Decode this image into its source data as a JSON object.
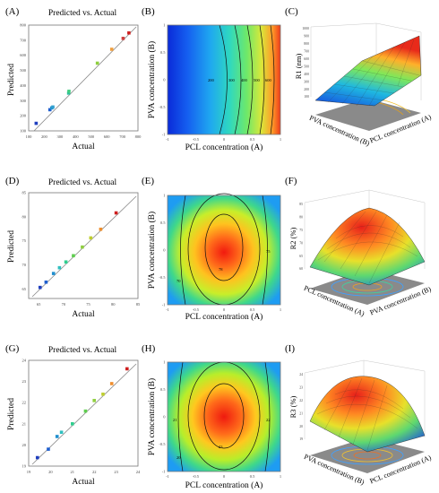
{
  "panels": [
    {
      "id": "A",
      "label": "(A)",
      "kind": "scatter",
      "title": "Predicted vs. Actual",
      "xlabel": "Actual",
      "ylabel": "Predicted",
      "ticks": [
        "100",
        "200",
        "300",
        "400",
        "500",
        "600",
        "700",
        "800"
      ],
      "range": [
        100,
        800
      ],
      "points": [
        [
          148,
          150
        ],
        [
          236,
          240
        ],
        [
          248,
          252
        ],
        [
          255,
          258
        ],
        [
          356,
          350
        ],
        [
          358,
          362
        ],
        [
          540,
          548
        ],
        [
          632,
          640
        ],
        [
          705,
          712
        ],
        [
          742,
          748
        ]
      ],
      "colors": [
        "#1f3fbf",
        "#1f5fcf",
        "#1f8fcf",
        "#2f9fcf",
        "#2fbf9f",
        "#3fcf7f",
        "#8fcf3f",
        "#ef9f3f",
        "#cf3f3f",
        "#cf1f1f"
      ]
    },
    {
      "id": "B",
      "label": "(B)",
      "kind": "contour",
      "xlabel": "PCL concentration (A)",
      "ylabel": "PVA concentration (B)",
      "xticks": [
        "-1",
        "-0.5",
        "0",
        "0.5",
        "1"
      ],
      "yticks": [
        "-1",
        "-0.5",
        "0",
        "0.5",
        "1"
      ],
      "contour_labels": [
        "200",
        "300",
        "400",
        "500",
        "600"
      ]
    },
    {
      "id": "C",
      "label": "(C)",
      "kind": "surface",
      "zlabel": "R1 (nm)",
      "xlabel": "PCL concentration (A)",
      "ylabel": "PVA concentration (B)",
      "zticks": [
        "100",
        "200",
        "300",
        "400",
        "500",
        "600",
        "700",
        "800",
        "900",
        "1000"
      ]
    },
    {
      "id": "D",
      "label": "(D)",
      "kind": "scatter",
      "title": "Predicted vs. Actual",
      "xlabel": "Actual",
      "ylabel": "Predicted",
      "ticks": [
        "65",
        "70",
        "75",
        "80",
        "85"
      ],
      "range": [
        63,
        85
      ],
      "points": [
        [
          65.3,
          65.3
        ],
        [
          66.5,
          66.4
        ],
        [
          68.0,
          68.2
        ],
        [
          69.2,
          69.4
        ],
        [
          70.5,
          70.6
        ],
        [
          72.0,
          71.9
        ],
        [
          73.8,
          73.7
        ],
        [
          75.5,
          75.6
        ],
        [
          77.5,
          77.4
        ],
        [
          80.6,
          80.8
        ]
      ],
      "colors": [
        "#1f3fbf",
        "#1f5fcf",
        "#1f8fcf",
        "#2fbfbf",
        "#2fcf8f",
        "#5fcf4f",
        "#8fcf3f",
        "#bfcf2f",
        "#ef8f2f",
        "#cf1f1f"
      ]
    },
    {
      "id": "E",
      "label": "(E)",
      "kind": "contour",
      "xlabel": "PCL concentration (A)",
      "ylabel": "PVA concentration (B)",
      "xticks": [
        "-1",
        "-0.5",
        "0",
        "0.5",
        "1"
      ],
      "yticks": [
        "-1",
        "-0.5",
        "0",
        "0.5",
        "1"
      ],
      "contour_labels": [
        "70",
        "75",
        "78"
      ]
    },
    {
      "id": "F",
      "label": "(F)",
      "kind": "surface",
      "zlabel": "R2 (%)",
      "xlabel": "PCL concentration (A)",
      "ylabel": "PVA concentration (B)",
      "zticks": [
        "60",
        "65",
        "70",
        "75",
        "80",
        "85"
      ]
    },
    {
      "id": "G",
      "label": "(G)",
      "kind": "scatter",
      "title": "Predicted vs. Actual",
      "xlabel": "Actual",
      "ylabel": "Predicted",
      "ticks": [
        "19",
        "20",
        "21",
        "22",
        "23",
        "24"
      ],
      "range": [
        19,
        24
      ],
      "points": [
        [
          19.4,
          19.4
        ],
        [
          19.9,
          19.8
        ],
        [
          20.3,
          20.4
        ],
        [
          20.5,
          20.6
        ],
        [
          21.0,
          21.0
        ],
        [
          21.6,
          21.6
        ],
        [
          22.0,
          22.1
        ],
        [
          22.4,
          22.4
        ],
        [
          22.8,
          22.9
        ],
        [
          23.5,
          23.6
        ]
      ],
      "colors": [
        "#1f3fbf",
        "#1f5fcf",
        "#1f8fcf",
        "#2fbfbf",
        "#2fcf8f",
        "#5fcf4f",
        "#8fcf3f",
        "#bfcf2f",
        "#ef8f2f",
        "#cf1f1f"
      ]
    },
    {
      "id": "H",
      "label": "(H)",
      "kind": "contour",
      "xlabel": "PCL concentration (A)",
      "ylabel": "PVA concentration (B)",
      "xticks": [
        "-1",
        "-0.5",
        "0",
        "0.5",
        "1"
      ],
      "yticks": [
        "-1",
        "-0.5",
        "0",
        "0.5",
        "1"
      ],
      "contour_labels": [
        "20",
        "21",
        "22",
        "23"
      ]
    },
    {
      "id": "I",
      "label": "(I)",
      "kind": "surface",
      "zlabel": "R3 (%)",
      "xlabel": "PCL concentration (A)",
      "ylabel": "PVA concentration (B)",
      "zticks": [
        "19",
        "20",
        "21",
        "22",
        "23",
        "24"
      ]
    }
  ],
  "chart_data": [
    {
      "type": "scatter",
      "title": "Predicted vs. Actual",
      "xlabel": "Actual",
      "ylabel": "Predicted",
      "xlim": [
        100,
        800
      ],
      "ylim": [
        100,
        800
      ],
      "x": [
        148,
        236,
        248,
        255,
        356,
        358,
        540,
        632,
        705,
        742
      ],
      "y": [
        150,
        240,
        252,
        258,
        350,
        362,
        548,
        640,
        712,
        748
      ]
    },
    {
      "type": "heatmap",
      "xlabel": "PCL concentration (A)",
      "ylabel": "PVA concentration (B)",
      "xlim": [
        -1,
        1
      ],
      "ylim": [
        -1,
        1
      ]
    },
    {
      "type": "area",
      "zlabel": "R1 (nm)",
      "xlabel": "PCL concentration (A)",
      "ylabel": "PVA concentration (B)",
      "zlim": [
        100,
        1000
      ]
    },
    {
      "type": "scatter",
      "title": "Predicted vs. Actual",
      "xlabel": "Actual",
      "ylabel": "Predicted",
      "xlim": [
        63,
        85
      ],
      "ylim": [
        63,
        85
      ],
      "x": [
        65.3,
        66.5,
        68.0,
        69.2,
        70.5,
        72.0,
        73.8,
        75.5,
        77.5,
        80.6
      ],
      "y": [
        65.3,
        66.4,
        68.2,
        69.4,
        70.6,
        71.9,
        73.7,
        75.6,
        77.4,
        80.8
      ]
    },
    {
      "type": "heatmap",
      "xlabel": "PCL concentration (A)",
      "ylabel": "PVA concentration (B)",
      "xlim": [
        -1,
        1
      ],
      "ylim": [
        -1,
        1
      ]
    },
    {
      "type": "area",
      "zlabel": "R2 (%)",
      "xlabel": "PCL concentration (A)",
      "ylabel": "PVA concentration (B)",
      "zlim": [
        60,
        85
      ]
    },
    {
      "type": "scatter",
      "title": "Predicted vs. Actual",
      "xlabel": "Actual",
      "ylabel": "Predicted",
      "xlim": [
        19,
        24
      ],
      "ylim": [
        19,
        24
      ],
      "x": [
        19.4,
        19.9,
        20.3,
        20.5,
        21.0,
        21.6,
        22.0,
        22.4,
        22.8,
        23.5
      ],
      "y": [
        19.4,
        19.8,
        20.4,
        20.6,
        21.0,
        21.6,
        22.1,
        22.4,
        22.9,
        23.6
      ]
    },
    {
      "type": "heatmap",
      "xlabel": "PCL concentration (A)",
      "ylabel": "PVA concentration (B)",
      "xlim": [
        -1,
        1
      ],
      "ylim": [
        -1,
        1
      ]
    },
    {
      "type": "area",
      "zlabel": "R3 (%)",
      "xlabel": "PCL concentration (A)",
      "ylabel": "PVA concentration (B)",
      "zlim": [
        19,
        24
      ]
    }
  ]
}
